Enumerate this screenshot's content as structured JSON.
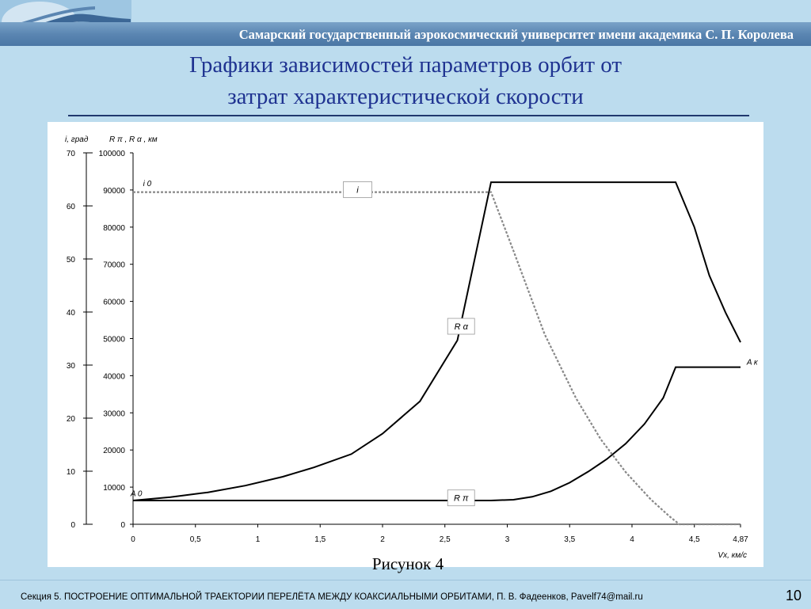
{
  "header": {
    "university": "Самарский государственный аэрокосмический университет имени академика С. П. Королева"
  },
  "slide": {
    "title_line1": "Графики зависимостей параметров орбит от",
    "title_line2": "затрат характеристической скорости",
    "caption": "Рисунок 4",
    "footer": "Секция 5. ПОСТРОЕНИЕ ОПТИМАЛЬНОЙ ТРАЕКТОРИИ ПЕРЕЛЁТА МЕЖДУ КОАКСИАЛЬНЫМИ ОРБИТАМИ, П. В. Фадеенков, Pavelf74@mail.ru",
    "page_number": "10"
  },
  "colors": {
    "background": "#bcdcee",
    "title": "#1f3391",
    "header_band": "#5b86b2",
    "series_solid": "#000000",
    "series_dashed": "#888888"
  },
  "chart_data": {
    "type": "line",
    "xlabel": "Vx, км/с",
    "ylabel_left": "i, град",
    "ylabel_right": "R π , R α , км",
    "xlim": [
      0,
      4.87
    ],
    "ylim_left": [
      0,
      70
    ],
    "ylim_right": [
      0,
      100000
    ],
    "x_ticks": [
      "0",
      "0,5",
      "1",
      "1,5",
      "2",
      "2,5",
      "3",
      "3,5",
      "4",
      "4,5",
      "4,87"
    ],
    "y_left_ticks": [
      "0",
      "10",
      "20",
      "30",
      "40",
      "50",
      "60",
      "70"
    ],
    "y_right_ticks": [
      "0",
      "10000",
      "20000",
      "30000",
      "40000",
      "50000",
      "60000",
      "70000",
      "80000",
      "90000",
      "100000"
    ],
    "grid": false,
    "annotations": [
      {
        "text": "i 0",
        "x": 0.08,
        "y_right": 91000
      },
      {
        "text": "A 0",
        "x": -0.02,
        "y_right": 7600
      },
      {
        "text": "A к",
        "x": 4.92,
        "y_right": 43000
      }
    ],
    "series": [
      {
        "name": "R α",
        "axis": "right",
        "style": "solid",
        "x": [
          0,
          0.3,
          0.6,
          0.9,
          1.2,
          1.45,
          1.75,
          2.0,
          2.3,
          2.6,
          2.87,
          3.1,
          3.4,
          3.7,
          4.0,
          4.2,
          4.35,
          4.5,
          4.62,
          4.75,
          4.87
        ],
        "y": [
          6400,
          7300,
          8600,
          10400,
          12800,
          15300,
          18900,
          24400,
          33100,
          49500,
          92100,
          92100,
          92100,
          92100,
          92100,
          92100,
          92100,
          80000,
          67000,
          57000,
          49000
        ]
      },
      {
        "name": "R π",
        "axis": "right",
        "style": "solid",
        "x": [
          0,
          0.5,
          1.0,
          1.5,
          2.0,
          2.5,
          2.87,
          3.05,
          3.2,
          3.35,
          3.5,
          3.65,
          3.8,
          3.95,
          4.1,
          4.25,
          4.35,
          4.6,
          4.87
        ],
        "y": [
          6400,
          6400,
          6400,
          6400,
          6400,
          6400,
          6400,
          6600,
          7400,
          8900,
          11200,
          14200,
          17600,
          21700,
          27000,
          34000,
          42300,
          42300,
          42300
        ]
      },
      {
        "name": "i",
        "axis": "left",
        "style": "dashed",
        "x": [
          0,
          0.5,
          1.0,
          1.5,
          2.0,
          2.5,
          2.87,
          3.05,
          3.3,
          3.55,
          3.75,
          3.95,
          4.15,
          4.3,
          4.38,
          4.6,
          4.87
        ],
        "y": [
          62.6,
          62.6,
          62.6,
          62.6,
          62.6,
          62.6,
          62.6,
          51.5,
          35.8,
          23.8,
          16.0,
          9.8,
          4.7,
          1.5,
          0,
          0,
          0
        ]
      }
    ],
    "series_labels": [
      {
        "text": "i",
        "x": 1.8,
        "y_right": 90100
      },
      {
        "text": "R α",
        "x": 2.63,
        "y_right": 53300
      },
      {
        "text": "R π",
        "x": 2.63,
        "y_right": 7100
      }
    ]
  }
}
